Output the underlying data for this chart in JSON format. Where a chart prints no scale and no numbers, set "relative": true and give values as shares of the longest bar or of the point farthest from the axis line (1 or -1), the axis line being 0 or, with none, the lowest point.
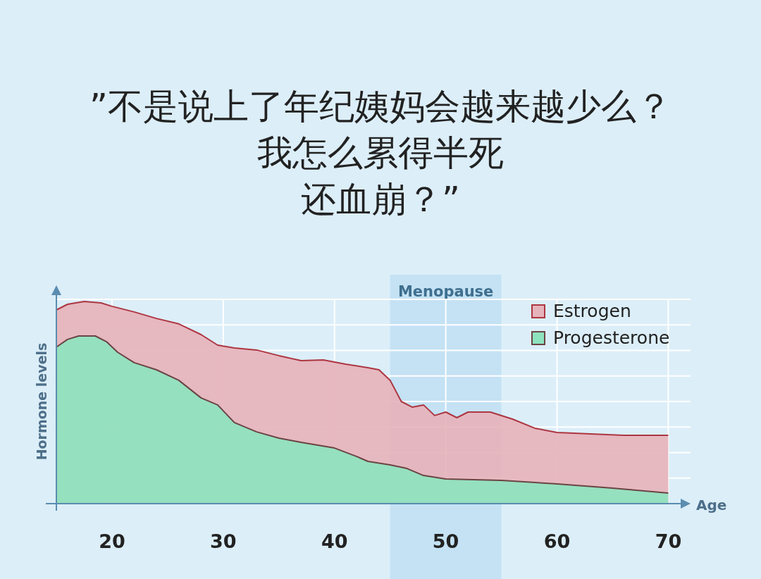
{
  "chart_data": {
    "type": "area",
    "title": "”不是说上了年纪姨妈会越来越少么？",
    "subtitle": "我怎么累得半死还血崩？”",
    "xlabel": "Age",
    "ylabel": "Hormone levels",
    "relative": true,
    "xlim": [
      15,
      72
    ],
    "xticks": [
      20,
      30,
      40,
      50,
      60,
      70
    ],
    "grid": true,
    "legend": "top right",
    "bands": [
      {
        "axis": "x",
        "from": 45,
        "to": 55,
        "label": "Menopause",
        "color": "#c4e2f4"
      }
    ],
    "series": [
      {
        "name": "Estrogen",
        "color": "#e6b3bb",
        "x": [
          15,
          16,
          17.5,
          19,
          20,
          22,
          24,
          26,
          28,
          29.5,
          31,
          33,
          35,
          37,
          39,
          41,
          43,
          44,
          45,
          46,
          47,
          48,
          49,
          50,
          51,
          52,
          54,
          56,
          58,
          60,
          63,
          66,
          70
        ],
        "values": [
          0.958,
          0.986,
          1,
          0.993,
          0.976,
          0.948,
          0.916,
          0.889,
          0.836,
          0.784,
          0.77,
          0.76,
          0.732,
          0.707,
          0.711,
          0.69,
          0.672,
          0.662,
          0.61,
          0.505,
          0.477,
          0.488,
          0.436,
          0.453,
          0.425,
          0.453,
          0.453,
          0.418,
          0.373,
          0.352,
          0.345,
          0.338,
          0.338
        ]
      },
      {
        "name": "Progesterone",
        "color": "#8ee3bf",
        "x": [
          15,
          16,
          17,
          18.5,
          19.5,
          20.5,
          22,
          24,
          26,
          28,
          29.5,
          31,
          33,
          35,
          37,
          40,
          42,
          43,
          45,
          46.5,
          48,
          50,
          55,
          60,
          65,
          70
        ],
        "values": [
          0.774,
          0.812,
          0.829,
          0.829,
          0.801,
          0.749,
          0.697,
          0.662,
          0.61,
          0.523,
          0.488,
          0.401,
          0.355,
          0.324,
          0.303,
          0.275,
          0.233,
          0.209,
          0.192,
          0.174,
          0.139,
          0.122,
          0.115,
          0.098,
          0.077,
          0.052
        ]
      }
    ]
  }
}
